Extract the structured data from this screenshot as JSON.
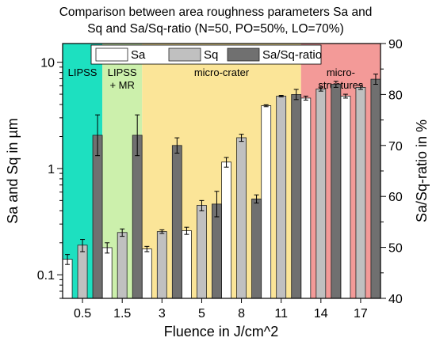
{
  "chart_data": {
    "type": "bar",
    "title_line1": "Comparison between area roughness parameters Sa and",
    "title_line2": "Sq and Sa/Sq-ratio (N=50, PO=50%, LO=70%)",
    "xlabel": "Fluence in J/cm^2",
    "ylabel_left": "Sa and Sq in µm",
    "ylabel_right": "Sa/Sq-ratio in %",
    "y_left_scale": "log",
    "ylim_left": [
      0.06,
      15
    ],
    "ylim_right": [
      40,
      90
    ],
    "y_left_ticks": [
      "0.1",
      "1",
      "10"
    ],
    "y_right_ticks": [
      "40",
      "50",
      "60",
      "70",
      "80",
      "90"
    ],
    "categories": [
      "0.5",
      "1.5",
      "3",
      "5",
      "8",
      "11",
      "14",
      "17"
    ],
    "legend": [
      "Sa",
      "Sq",
      "Sa/Sq-ratio"
    ],
    "series": [
      {
        "name": "Sa",
        "axis": "left",
        "color": "#ffffff",
        "values": [
          0.14,
          0.18,
          0.175,
          0.26,
          1.15,
          3.9,
          4.6,
          4.8
        ],
        "errors": [
          0.015,
          0.02,
          0.01,
          0.02,
          0.12,
          0.08,
          0.2,
          0.2
        ]
      },
      {
        "name": "Sq",
        "axis": "left",
        "color": "#c0c0c0",
        "values": [
          0.19,
          0.25,
          0.255,
          0.45,
          1.95,
          4.8,
          5.6,
          5.8
        ],
        "errors": [
          0.025,
          0.02,
          0.01,
          0.05,
          0.15,
          0.08,
          0.25,
          0.25
        ]
      },
      {
        "name": "Sa/Sq-ratio",
        "axis": "right",
        "color": "#707070",
        "values": [
          72,
          72,
          70,
          58.5,
          59.5,
          80,
          82,
          83
        ],
        "errors": [
          4,
          4,
          1.5,
          2.5,
          0.8,
          1,
          0.6,
          1
        ]
      }
    ],
    "regions": [
      {
        "label": [
          "LIPSS"
        ],
        "from": "0.5",
        "to": "0.5",
        "color": "#1de0c0"
      },
      {
        "label": [
          "LIPSS",
          "+ MR"
        ],
        "from": "1.5",
        "to": "1.5",
        "color": "#ccf0ac"
      },
      {
        "label": [
          "micro-crater"
        ],
        "from": "3",
        "to": "11",
        "color": "#fbe598"
      },
      {
        "label": [
          "micro-",
          "structures"
        ],
        "from": "14",
        "to": "17",
        "color": "#f39a98"
      }
    ]
  }
}
